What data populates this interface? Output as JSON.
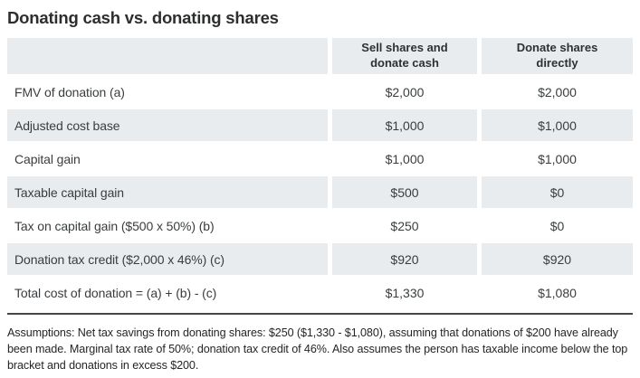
{
  "title": "Donating cash vs. donating shares",
  "colors": {
    "row_shade": "#e8ecef",
    "header_shade": "#e8ecef",
    "text": "#3a3d3f",
    "divider": "#454849",
    "background": "#ffffff"
  },
  "chart_data": {
    "type": "table",
    "title": "Donating cash vs. donating shares",
    "columns": [
      "Sell shares and donate cash",
      "Donate shares directly"
    ],
    "rows": [
      {
        "label": "FMV of donation (a)",
        "values": [
          "$2,000",
          "$2,000"
        ]
      },
      {
        "label": "Adjusted cost base",
        "values": [
          "$1,000",
          "$1,000"
        ]
      },
      {
        "label": "Capital gain",
        "values": [
          "$1,000",
          "$1,000"
        ]
      },
      {
        "label": "Taxable capital gain",
        "values": [
          "$500",
          "$0"
        ]
      },
      {
        "label": "Tax on capital gain ($500 x 50%) (b)",
        "values": [
          "$250",
          "$0"
        ]
      },
      {
        "label": "Donation tax credit ($2,000 x 46%) (c)",
        "values": [
          "$920",
          "$920"
        ]
      },
      {
        "label": "Total cost of donation = (a) + (b) - (c)",
        "values": [
          "$1,330",
          "$1,080"
        ]
      }
    ],
    "footnote": "Assumptions: Net tax savings from donating shares: $250 ($1,330 - $1,080), assuming that donations of $200 have already been made. Marginal tax rate of 50%; donation tax credit of 46%. Also assumes the person has taxable income below the top bracket and donations in excess $200.",
    "layout": {
      "shaded_row_indexes": [
        1,
        3,
        5
      ],
      "value_alignment": "center"
    }
  }
}
